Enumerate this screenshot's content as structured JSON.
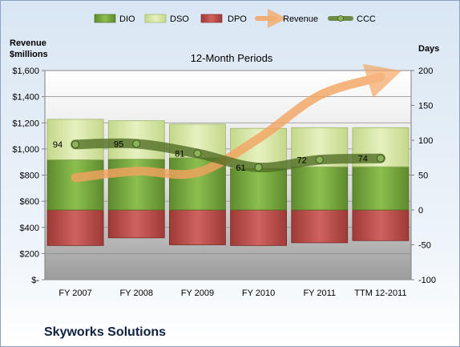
{
  "chart_data": {
    "type": "bar",
    "title": "12-Month Periods",
    "company": "Skyworks Solutions",
    "y_left_label": [
      "Revenue",
      "$millions"
    ],
    "y_right_label": "Days",
    "y_left_ticks": [
      "$-",
      "$200",
      "$400",
      "$600",
      "$800",
      "$1,000",
      "$1,200",
      "$1,400",
      "$1,600"
    ],
    "y_left_range": [
      0,
      1600
    ],
    "y_right_ticks": [
      "-100",
      "-50",
      "0",
      "50",
      "100",
      "150",
      "200"
    ],
    "y_right_range": [
      -100,
      200
    ],
    "categories": [
      "FY 2007",
      "FY 2008",
      "FY 2009",
      "FY 2010",
      "FY 2011",
      "TTM 12-2011"
    ],
    "legend": [
      "DIO",
      "DSO",
      "DPO",
      "Revenue",
      "CCC"
    ],
    "legend_position": "top",
    "grid": true,
    "series": [
      {
        "name": "DIO",
        "axis": "days",
        "color": "#77a341",
        "values": [
          72,
          73,
          75,
          60,
          62,
          62
        ]
      },
      {
        "name": "DSO",
        "axis": "days",
        "color": "#d8e8a8",
        "values": [
          58,
          55,
          48,
          57,
          56,
          56
        ]
      },
      {
        "name": "DPO",
        "axis": "days",
        "color": "#c0504d",
        "values": [
          -51,
          -40,
          -50,
          -51,
          -47,
          -44
        ]
      },
      {
        "name": "Revenue",
        "axis": "revenue",
        "color": "#f79646",
        "values": [
          780,
          830,
          820,
          1080,
          1410,
          1550
        ]
      },
      {
        "name": "CCC",
        "axis": "days",
        "color": "#5a7a2a",
        "values": [
          94,
          95,
          81,
          61,
          72,
          74
        ]
      }
    ],
    "ccc_labels": [
      "94",
      "95",
      "81",
      "61",
      "72",
      "74"
    ]
  }
}
